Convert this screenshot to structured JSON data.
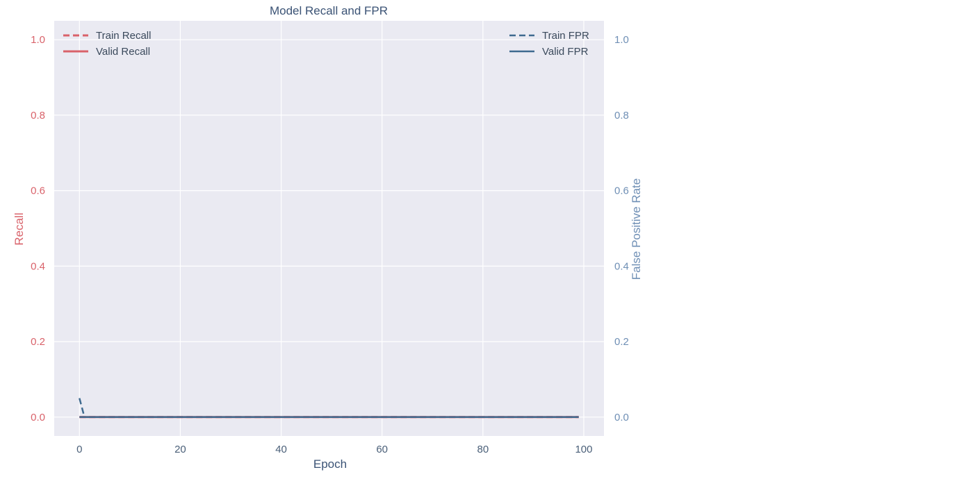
{
  "chart_data": {
    "type": "line",
    "title": "Model Recall and FPR",
    "xlabel": "Epoch",
    "ylabel_left": "Recall",
    "ylabel_right": "False Positive Rate",
    "xlim": [
      -5,
      104
    ],
    "ylim_left": [
      -0.05,
      1.05
    ],
    "ylim_right": [
      -0.05,
      1.05
    ],
    "xticks": [
      0,
      20,
      40,
      60,
      80,
      100
    ],
    "yticks_left": [
      0.0,
      0.2,
      0.4,
      0.6,
      0.8,
      1.0
    ],
    "yticks_right": [
      0.0,
      0.2,
      0.4,
      0.6,
      0.8,
      1.0
    ],
    "xtick_labels": [
      "0",
      "20",
      "40",
      "60",
      "80",
      "100"
    ],
    "ytick_labels": [
      "0.0",
      "0.2",
      "0.4",
      "0.6",
      "0.8",
      "1.0"
    ],
    "grid": true,
    "legend_left": {
      "placement": "top-left",
      "entries": [
        "Train Recall",
        "Valid Recall"
      ]
    },
    "legend_right": {
      "placement": "top-right",
      "entries": [
        "Train FPR",
        "Valid FPR"
      ]
    },
    "colors": {
      "recall": "#d9626a",
      "fpr": "#3e6a8f",
      "background": "#eaeaf2",
      "grid": "#ffffff"
    },
    "series": [
      {
        "name": "Train Recall",
        "axis": "left",
        "style": "dashed",
        "x_start": 0,
        "x_end": 99,
        "values_rule": "constant",
        "points": [
          [
            0,
            0.0
          ],
          [
            99,
            0.0
          ]
        ]
      },
      {
        "name": "Valid Recall",
        "axis": "left",
        "style": "solid",
        "points": [
          [
            0,
            0.0
          ],
          [
            99,
            0.0
          ]
        ]
      },
      {
        "name": "Train FPR",
        "axis": "right",
        "style": "dashed",
        "points": [
          [
            0,
            0.05
          ],
          [
            1,
            0.0
          ],
          [
            99,
            0.0
          ]
        ]
      },
      {
        "name": "Valid FPR",
        "axis": "right",
        "style": "solid",
        "points": [
          [
            0,
            0.0
          ],
          [
            99,
            0.0
          ]
        ]
      }
    ]
  }
}
